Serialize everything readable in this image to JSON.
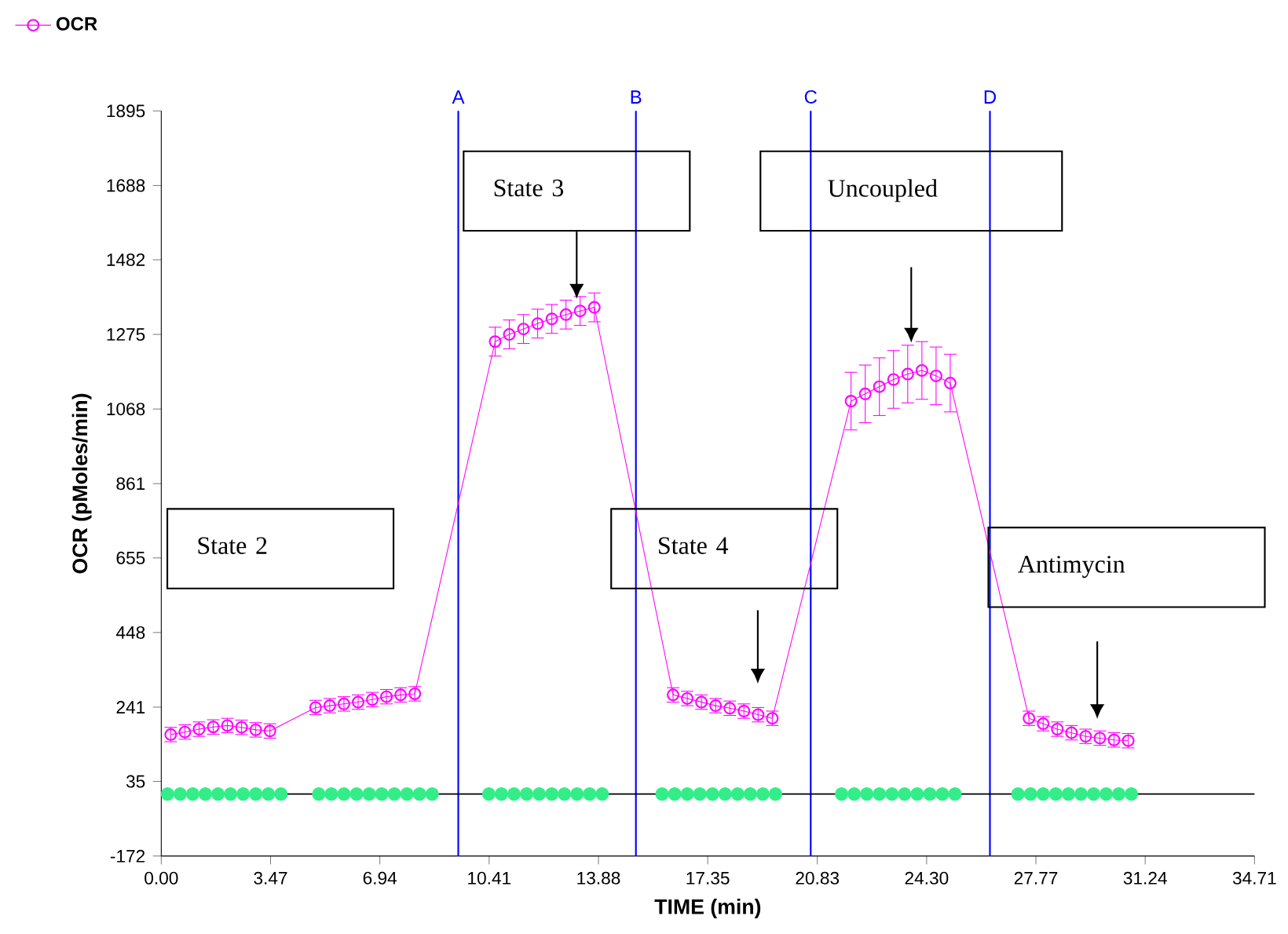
{
  "chart_data": {
    "type": "line",
    "xlabel": "TIME (min)",
    "ylabel": "OCR (pMoles/min)",
    "xlim": [
      0,
      34.71
    ],
    "ylim": [
      -172,
      1895
    ],
    "xticks": [
      {
        "value": 0,
        "label": "0.00"
      },
      3.47,
      6.94,
      10.41,
      13.88,
      17.35,
      20.83,
      {
        "value": 24.3,
        "label": "24.30"
      },
      27.77,
      31.24,
      34.71
    ],
    "yticks": [
      -172,
      35,
      241,
      448,
      655,
      861,
      1068,
      1275,
      1482,
      1688,
      1895
    ],
    "grid": false,
    "legend": "top left",
    "marker": "circle",
    "series": [
      {
        "name": "OCR",
        "color": "#ff00ff",
        "x": [
          0.3,
          0.75,
          1.2,
          1.65,
          2.1,
          2.55,
          3.0,
          3.45,
          4.9,
          5.35,
          5.8,
          6.25,
          6.7,
          7.15,
          7.6,
          8.05,
          10.6,
          11.05,
          11.5,
          11.95,
          12.4,
          12.85,
          13.3,
          13.75,
          16.25,
          16.7,
          17.15,
          17.6,
          18.05,
          18.5,
          18.95,
          19.4,
          21.9,
          22.35,
          22.8,
          23.25,
          23.7,
          24.15,
          24.6,
          25.05,
          27.55,
          28.0,
          28.45,
          28.9,
          29.35,
          29.8,
          30.25,
          30.7
        ],
        "values": [
          165,
          172,
          180,
          186,
          190,
          185,
          178,
          175,
          240,
          245,
          250,
          255,
          262,
          270,
          275,
          278,
          1255,
          1275,
          1290,
          1305,
          1318,
          1330,
          1340,
          1350,
          275,
          265,
          255,
          245,
          238,
          230,
          220,
          210,
          1090,
          1110,
          1130,
          1150,
          1165,
          1175,
          1160,
          1140,
          210,
          195,
          180,
          170,
          160,
          155,
          150,
          148
        ],
        "errors": [
          20,
          20,
          20,
          20,
          20,
          20,
          20,
          20,
          20,
          20,
          20,
          20,
          20,
          20,
          20,
          20,
          40,
          40,
          40,
          40,
          40,
          40,
          40,
          40,
          20,
          20,
          20,
          20,
          20,
          20,
          20,
          20,
          80,
          80,
          80,
          80,
          80,
          80,
          80,
          80,
          20,
          20,
          20,
          20,
          20,
          20,
          20,
          20
        ]
      },
      {
        "type": "scatter",
        "color": "#33ee88",
        "x": [
          0.2,
          0.6,
          1.0,
          1.4,
          1.8,
          2.2,
          2.6,
          3.0,
          3.4,
          3.8,
          5.0,
          5.4,
          5.8,
          6.2,
          6.6,
          7.0,
          7.4,
          7.8,
          8.2,
          8.6,
          10.4,
          10.8,
          11.2,
          11.6,
          12.0,
          12.4,
          12.8,
          13.2,
          13.6,
          14.0,
          15.9,
          16.3,
          16.7,
          17.1,
          17.5,
          17.9,
          18.3,
          18.7,
          19.1,
          19.5,
          21.6,
          22.0,
          22.4,
          22.8,
          23.2,
          23.6,
          24.0,
          24.4,
          24.8,
          25.2,
          27.2,
          27.6,
          28.0,
          28.4,
          28.8,
          29.2,
          29.6,
          30.0,
          30.4,
          30.8
        ],
        "values": [
          0,
          0,
          0,
          0,
          0,
          0,
          0,
          0,
          0,
          0,
          0,
          0,
          0,
          0,
          0,
          0,
          0,
          0,
          0,
          0,
          0,
          0,
          0,
          0,
          0,
          0,
          0,
          0,
          0,
          0,
          0,
          0,
          0,
          0,
          0,
          0,
          0,
          0,
          0,
          0,
          0,
          0,
          0,
          0,
          0,
          0,
          0,
          0,
          0,
          0,
          0,
          0,
          0,
          0,
          0,
          0,
          0,
          0,
          0,
          0
        ]
      }
    ],
    "ref_lines": [
      {
        "axis": "x",
        "value": 9.43,
        "label": "A",
        "color": "#0000ff"
      },
      {
        "axis": "x",
        "value": 15.07,
        "label": "B",
        "color": "#0000ff"
      },
      {
        "axis": "x",
        "value": 20.62,
        "label": "C",
        "color": "#0000ff"
      },
      {
        "axis": "x",
        "value": 26.31,
        "label": "D",
        "color": "#0000ff"
      },
      {
        "axis": "y",
        "value": 0,
        "color": "#000000"
      }
    ],
    "annotations": [
      "State 2",
      "State 3",
      "Uncoupled",
      "State 4",
      "Antimycin"
    ]
  }
}
